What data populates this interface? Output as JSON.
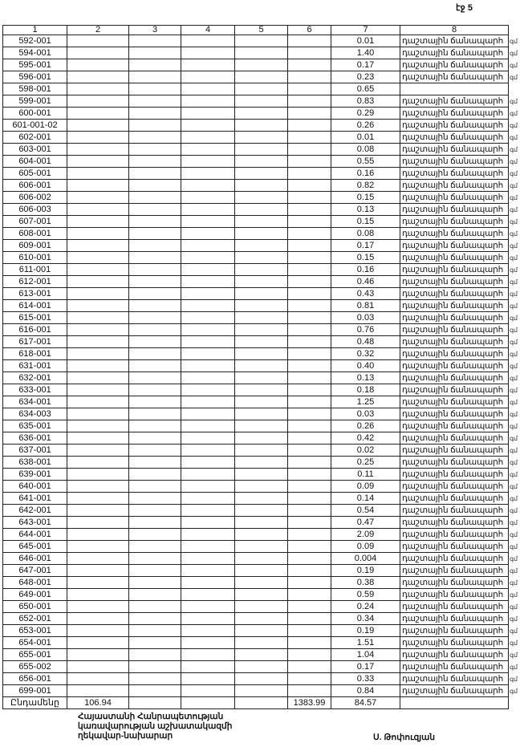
{
  "page_label": "էջ 5",
  "table": {
    "headers": [
      "1",
      "2",
      "3",
      "4",
      "5",
      "6",
      "7",
      "8"
    ],
    "unit_suffix": "գմ",
    "rows": [
      {
        "id": "592-001",
        "value": "0.01",
        "type": "դաշտային ճանապարհ"
      },
      {
        "id": "594-001",
        "value": "1.40",
        "type": "դաշտային ճանապարհ"
      },
      {
        "id": "595-001",
        "value": "0.17",
        "type": "դաշտային ճանապարհ"
      },
      {
        "id": "596-001",
        "value": "0.23",
        "type": "դաշտային ճանապարհ"
      },
      {
        "id": "598-001",
        "value": "0.65",
        "type": ""
      },
      {
        "id": "599-001",
        "value": "0.83",
        "type": "դաշտային ճանապարհ"
      },
      {
        "id": "600-001",
        "value": "0.29",
        "type": "դաշտային ճանապարհ"
      },
      {
        "id": "601-001-02",
        "value": "0.26",
        "type": "դաշտային ճանապարհ"
      },
      {
        "id": "602-001",
        "value": "0.01",
        "type": "դաշտային ճանապարհ"
      },
      {
        "id": "603-001",
        "value": "0.08",
        "type": "դաշտային ճանապարհ"
      },
      {
        "id": "604-001",
        "value": "0.55",
        "type": "դաշտային ճանապարհ"
      },
      {
        "id": "605-001",
        "value": "0.16",
        "type": "դաշտային ճանապարհ"
      },
      {
        "id": "606-001",
        "value": "0.82",
        "type": "դաշտային ճանապարհ"
      },
      {
        "id": "606-002",
        "value": "0.15",
        "type": "դաշտային ճանապարհ"
      },
      {
        "id": "606-003",
        "value": "0.13",
        "type": "դաշտային ճանապարհ"
      },
      {
        "id": "607-001",
        "value": "0.15",
        "type": "դաշտային ճանապարհ"
      },
      {
        "id": "608-001",
        "value": "0.08",
        "type": "դաշտային ճանապարհ"
      },
      {
        "id": "609-001",
        "value": "0.17",
        "type": "դաշտային ճանապարհ"
      },
      {
        "id": "610-001",
        "value": "0.15",
        "type": "դաշտային ճանապարհ"
      },
      {
        "id": "611-001",
        "value": "0.16",
        "type": "դաշտային ճանապարհ"
      },
      {
        "id": "612-001",
        "value": "0.46",
        "type": "դաշտային ճանապարհ"
      },
      {
        "id": "613-001",
        "value": "0.43",
        "type": "դաշտային ճանապարհ"
      },
      {
        "id": "614-001",
        "value": "0.81",
        "type": "դաշտային ճանապարհ"
      },
      {
        "id": "615-001",
        "value": "0.03",
        "type": "դաշտային ճանապարհ"
      },
      {
        "id": "616-001",
        "value": "0.76",
        "type": "դաշտային ճանապարհ"
      },
      {
        "id": "617-001",
        "value": "0.48",
        "type": "դաշտային ճանապարհ"
      },
      {
        "id": "618-001",
        "value": "0.32",
        "type": "դաշտային ճանապարհ"
      },
      {
        "id": "631-001",
        "value": "0.40",
        "type": "դաշտային ճանապարհ"
      },
      {
        "id": "632-001",
        "value": "0.13",
        "type": "դաշտային ճանապարհ"
      },
      {
        "id": "633-001",
        "value": "0.18",
        "type": "դաշտային ճանապարհ"
      },
      {
        "id": "634-001",
        "value": "1.25",
        "type": "դաշտային ճանապարհ"
      },
      {
        "id": "634-003",
        "value": "0.03",
        "type": "դաշտային ճանապարհ"
      },
      {
        "id": "635-001",
        "value": "0.26",
        "type": "դաշտային ճանապարհ"
      },
      {
        "id": "636-001",
        "value": "0.42",
        "type": "դաշտային ճանապարհ"
      },
      {
        "id": "637-001",
        "value": "0.02",
        "type": "դաշտային ճանապարհ"
      },
      {
        "id": "638-001",
        "value": "0.25",
        "type": "դաշտային ճանապարհ"
      },
      {
        "id": "639-001",
        "value": "0.11",
        "type": "դաշտային ճանապարհ"
      },
      {
        "id": "640-001",
        "value": "0.09",
        "type": "դաշտային ճանապարհ"
      },
      {
        "id": "641-001",
        "value": "0.14",
        "type": "դաշտային ճանապարհ"
      },
      {
        "id": "642-001",
        "value": "0.54",
        "type": "դաշտային ճանապարհ"
      },
      {
        "id": "643-001",
        "value": "0.47",
        "type": "դաշտային ճանապարհ"
      },
      {
        "id": "644-001",
        "value": "2.09",
        "type": "դաշտային ճանապարհ"
      },
      {
        "id": "645-001",
        "value": "0.09",
        "type": "դաշտային ճանապարհ"
      },
      {
        "id": "646-001",
        "value": "0.004",
        "type": "դաշտային ճանապարհ"
      },
      {
        "id": "647-001",
        "value": "0.19",
        "type": "դաշտային ճանապարհ"
      },
      {
        "id": "648-001",
        "value": "0.38",
        "type": "դաշտային ճանապարհ"
      },
      {
        "id": "649-001",
        "value": "0.59",
        "type": "դաշտային ճանապարհ"
      },
      {
        "id": "650-001",
        "value": "0.24",
        "type": "դաշտային ճանապարհ"
      },
      {
        "id": "652-001",
        "value": "0.34",
        "type": "դաշտային ճանապարհ"
      },
      {
        "id": "653-001",
        "value": "0.19",
        "type": "դաշտային ճանապարհ"
      },
      {
        "id": "654-001",
        "value": "1.51",
        "type": "դաշտային ճանապարհ"
      },
      {
        "id": "655-001",
        "value": "1.04",
        "type": "դաշտային ճանապարհ"
      },
      {
        "id": "655-002",
        "value": "0.17",
        "type": "դաշտային ճանապարհ"
      },
      {
        "id": "656-001",
        "value": "0.33",
        "type": "դաշտային ճանապարհ"
      },
      {
        "id": "699-001",
        "value": "0.84",
        "type": "դաշտային ճանապարհ"
      }
    ],
    "total": {
      "label": "Ընդամենը",
      "col2": "106.94",
      "col6": "1383.99",
      "col7": "84.57"
    }
  },
  "footer": {
    "title_lines": [
      "Հայաստանի Հանրապետության",
      "կառավարության աշխատակազմի",
      "ղեկավար-նախարար"
    ],
    "signatory": "Ս. Թոփուզյան"
  }
}
